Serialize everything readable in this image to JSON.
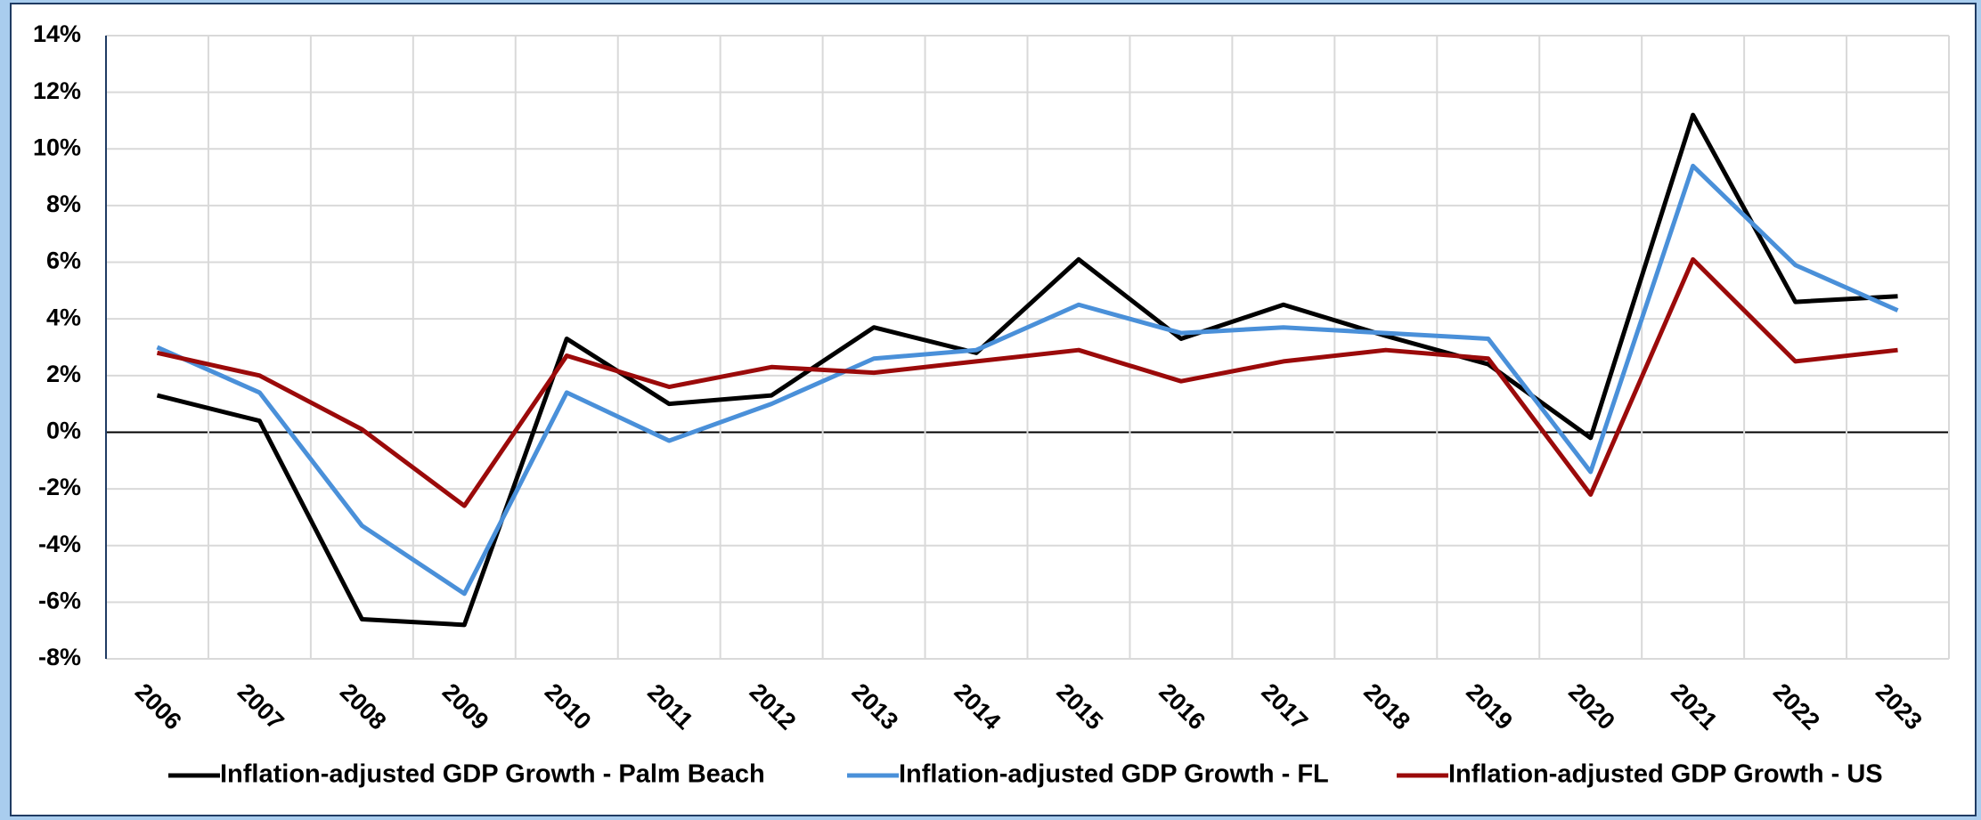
{
  "chart_data": {
    "type": "line",
    "categories": [
      "2006",
      "2007",
      "2008",
      "2009",
      "2010",
      "2011",
      "2012",
      "2013",
      "2014",
      "2015",
      "2016",
      "2017",
      "2018",
      "2019",
      "2020",
      "2021",
      "2022",
      "2023"
    ],
    "series": [
      {
        "name": "Inflation-adjusted GDP Growth - Palm Beach",
        "color": "#000000",
        "values": [
          1.3,
          0.4,
          -6.6,
          -6.8,
          3.3,
          1.0,
          1.3,
          3.7,
          2.8,
          6.1,
          3.3,
          4.5,
          3.4,
          2.4,
          -0.2,
          11.2,
          4.6,
          4.8
        ]
      },
      {
        "name": "Inflation-adjusted GDP Growth - FL",
        "color": "#4a90d9",
        "values": [
          3.0,
          1.4,
          -3.3,
          -5.7,
          1.4,
          -0.3,
          1.0,
          2.6,
          2.9,
          4.5,
          3.5,
          3.7,
          3.5,
          3.3,
          -1.4,
          9.4,
          5.9,
          4.3
        ]
      },
      {
        "name": "Inflation-adjusted GDP Growth - US",
        "color": "#9b0a0a",
        "values": [
          2.8,
          2.0,
          0.1,
          -2.6,
          2.7,
          1.6,
          2.3,
          2.1,
          2.5,
          2.9,
          1.8,
          2.5,
          2.9,
          2.6,
          -2.2,
          6.1,
          2.5,
          2.9
        ]
      }
    ],
    "ylim": [
      -8,
      14
    ],
    "yticks": [
      {
        "value": -8,
        "label": "-8%"
      },
      {
        "value": -6,
        "label": "-6%"
      },
      {
        "value": -4,
        "label": "-4%"
      },
      {
        "value": -2,
        "label": "-2%"
      },
      {
        "value": 0,
        "label": "0%"
      },
      {
        "value": 2,
        "label": "2%"
      },
      {
        "value": 4,
        "label": "4%"
      },
      {
        "value": 6,
        "label": "6%"
      },
      {
        "value": 8,
        "label": "8%"
      },
      {
        "value": 10,
        "label": "10%"
      },
      {
        "value": 12,
        "label": "12%"
      },
      {
        "value": 14,
        "label": "14%"
      }
    ],
    "grid": true,
    "legend": "bottom"
  }
}
